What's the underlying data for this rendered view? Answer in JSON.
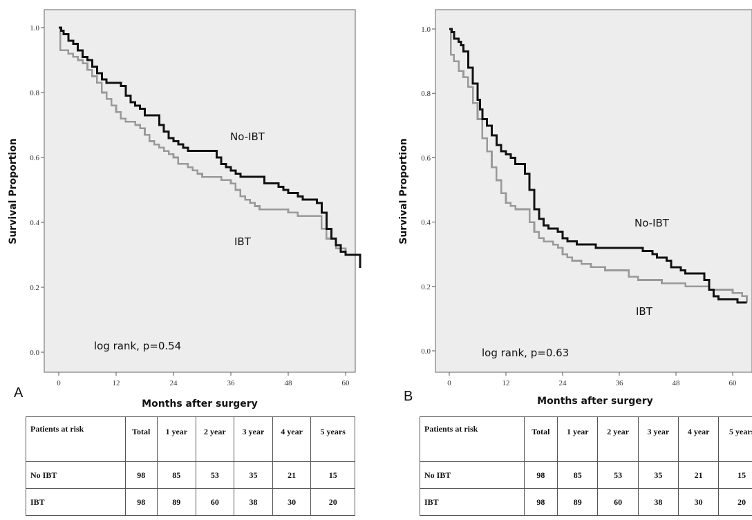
{
  "charts": [
    {
      "panel_label": "A",
      "annotation": "log rank, p=0.54",
      "table": {
        "header": [
          "Patients at risk",
          "Total",
          "1 year",
          "2 year",
          "3 year",
          "4 year",
          "5  years"
        ],
        "rows": [
          {
            "label": "No IBT",
            "values": [
              "98",
              "85",
              "53",
              "35",
              "21",
              "15"
            ]
          },
          {
            "label": "IBT",
            "values": [
              "98",
              "89",
              "60",
              "38",
              "30",
              "20"
            ]
          }
        ]
      }
    },
    {
      "panel_label": "B",
      "annotation": "log rank, p=0.63",
      "table": {
        "header": [
          "Patients at risk",
          "Total",
          "1 year",
          "2 year",
          "3 year",
          "4 year",
          "5  years"
        ],
        "rows": [
          {
            "label": "No IBT",
            "values": [
              "98",
              "85",
              "53",
              "35",
              "21",
              "15"
            ]
          },
          {
            "label": "IBT",
            "values": [
              "98",
              "89",
              "60",
              "38",
              "30",
              "20"
            ]
          }
        ]
      }
    }
  ],
  "chart_data": [
    {
      "type": "line",
      "xlabel": "Months after surgery",
      "ylabel": "Survival Proportion",
      "xlim": [
        0,
        63
      ],
      "ylim": [
        0,
        1
      ],
      "x_ticks": [
        "0",
        "12",
        "24",
        "36",
        "48",
        "60"
      ],
      "y_ticks": [
        "0.0",
        "0.2",
        "0.4",
        "0.6",
        "0.8",
        "1.0"
      ],
      "series": [
        {
          "name": "No-IBT",
          "color": "#111111",
          "points": [
            [
              0,
              1.0
            ],
            [
              0.5,
              0.99
            ],
            [
              1,
              0.98
            ],
            [
              2,
              0.96
            ],
            [
              3,
              0.95
            ],
            [
              4,
              0.93
            ],
            [
              5,
              0.91
            ],
            [
              6,
              0.9
            ],
            [
              7,
              0.88
            ],
            [
              8,
              0.86
            ],
            [
              9,
              0.84
            ],
            [
              10,
              0.83
            ],
            [
              12,
              0.83
            ],
            [
              13,
              0.82
            ],
            [
              14,
              0.79
            ],
            [
              15,
              0.77
            ],
            [
              16,
              0.76
            ],
            [
              17,
              0.75
            ],
            [
              18,
              0.73
            ],
            [
              20,
              0.73
            ],
            [
              21,
              0.7
            ],
            [
              22,
              0.68
            ],
            [
              23,
              0.66
            ],
            [
              24,
              0.65
            ],
            [
              25,
              0.64
            ],
            [
              26,
              0.63
            ],
            [
              27,
              0.62
            ],
            [
              32,
              0.62
            ],
            [
              33,
              0.6
            ],
            [
              34,
              0.58
            ],
            [
              35,
              0.57
            ],
            [
              36,
              0.56
            ],
            [
              37,
              0.55
            ],
            [
              38,
              0.54
            ],
            [
              42,
              0.54
            ],
            [
              43,
              0.52
            ],
            [
              45,
              0.52
            ],
            [
              46,
              0.51
            ],
            [
              47,
              0.5
            ],
            [
              48,
              0.49
            ],
            [
              50,
              0.48
            ],
            [
              51,
              0.47
            ],
            [
              53,
              0.47
            ],
            [
              54,
              0.46
            ],
            [
              55,
              0.43
            ],
            [
              56,
              0.38
            ],
            [
              57,
              0.35
            ],
            [
              58,
              0.33
            ],
            [
              59,
              0.31
            ],
            [
              60,
              0.3
            ],
            [
              62,
              0.3
            ],
            [
              63,
              0.26
            ]
          ]
        },
        {
          "name": "IBT",
          "color": "#999999",
          "points": [
            [
              0,
              1.0
            ],
            [
              0.3,
              0.93
            ],
            [
              2,
              0.92
            ],
            [
              3,
              0.91
            ],
            [
              4,
              0.9
            ],
            [
              5,
              0.89
            ],
            [
              6,
              0.87
            ],
            [
              7,
              0.85
            ],
            [
              8,
              0.83
            ],
            [
              9,
              0.8
            ],
            [
              10,
              0.78
            ],
            [
              11,
              0.76
            ],
            [
              12,
              0.74
            ],
            [
              13,
              0.72
            ],
            [
              14,
              0.71
            ],
            [
              15,
              0.71
            ],
            [
              16,
              0.7
            ],
            [
              17,
              0.69
            ],
            [
              18,
              0.67
            ],
            [
              19,
              0.65
            ],
            [
              20,
              0.64
            ],
            [
              21,
              0.63
            ],
            [
              22,
              0.62
            ],
            [
              23,
              0.61
            ],
            [
              24,
              0.6
            ],
            [
              25,
              0.58
            ],
            [
              26,
              0.58
            ],
            [
              27,
              0.57
            ],
            [
              28,
              0.56
            ],
            [
              29,
              0.55
            ],
            [
              30,
              0.54
            ],
            [
              33,
              0.54
            ],
            [
              34,
              0.53
            ],
            [
              36,
              0.52
            ],
            [
              37,
              0.5
            ],
            [
              38,
              0.48
            ],
            [
              39,
              0.47
            ],
            [
              40,
              0.46
            ],
            [
              41,
              0.45
            ],
            [
              42,
              0.44
            ],
            [
              47,
              0.44
            ],
            [
              48,
              0.43
            ],
            [
              49,
              0.43
            ],
            [
              50,
              0.42
            ],
            [
              54,
              0.42
            ],
            [
              55,
              0.38
            ],
            [
              56,
              0.35
            ],
            [
              58,
              0.32
            ],
            [
              60,
              0.3
            ],
            [
              62,
              0.3
            ],
            [
              63,
              0.26
            ]
          ]
        }
      ],
      "annotations": [
        "No-IBT",
        "IBT"
      ]
    },
    {
      "type": "line",
      "xlabel": "Months after surgery",
      "ylabel": "Survival Proportion",
      "xlim": [
        0,
        63
      ],
      "ylim": [
        0,
        1
      ],
      "x_ticks": [
        "0",
        "12",
        "24",
        "36",
        "48",
        "60"
      ],
      "y_ticks": [
        "0.0",
        "0.2",
        "0.4",
        "0.6",
        "0.8",
        "1.0"
      ],
      "series": [
        {
          "name": "No-IBT",
          "color": "#111111",
          "points": [
            [
              0,
              1.0
            ],
            [
              0.5,
              0.99
            ],
            [
              1,
              0.97
            ],
            [
              2,
              0.96
            ],
            [
              2.5,
              0.95
            ],
            [
              3,
              0.93
            ],
            [
              4,
              0.88
            ],
            [
              5,
              0.83
            ],
            [
              6,
              0.78
            ],
            [
              6.5,
              0.75
            ],
            [
              7,
              0.72
            ],
            [
              8,
              0.7
            ],
            [
              9,
              0.67
            ],
            [
              10,
              0.64
            ],
            [
              11,
              0.62
            ],
            [
              12,
              0.61
            ],
            [
              13,
              0.6
            ],
            [
              14,
              0.58
            ],
            [
              15,
              0.58
            ],
            [
              16,
              0.55
            ],
            [
              17,
              0.5
            ],
            [
              18,
              0.44
            ],
            [
              19,
              0.41
            ],
            [
              20,
              0.39
            ],
            [
              21,
              0.38
            ],
            [
              23,
              0.37
            ],
            [
              24,
              0.35
            ],
            [
              25,
              0.34
            ],
            [
              27,
              0.33
            ],
            [
              30,
              0.33
            ],
            [
              31,
              0.32
            ],
            [
              40,
              0.32
            ],
            [
              41,
              0.31
            ],
            [
              43,
              0.3
            ],
            [
              44,
              0.29
            ],
            [
              46,
              0.28
            ],
            [
              47,
              0.26
            ],
            [
              49,
              0.25
            ],
            [
              50,
              0.24
            ],
            [
              53,
              0.24
            ],
            [
              54,
              0.22
            ],
            [
              55,
              0.19
            ],
            [
              56,
              0.17
            ],
            [
              57,
              0.16
            ],
            [
              60,
              0.16
            ],
            [
              61,
              0.15
            ],
            [
              63,
              0.15
            ]
          ]
        },
        {
          "name": "IBT",
          "color": "#999999",
          "points": [
            [
              0,
              1.0
            ],
            [
              0.3,
              0.92
            ],
            [
              1,
              0.9
            ],
            [
              2,
              0.87
            ],
            [
              3,
              0.85
            ],
            [
              4,
              0.82
            ],
            [
              5,
              0.77
            ],
            [
              6,
              0.72
            ],
            [
              7,
              0.66
            ],
            [
              8,
              0.62
            ],
            [
              9,
              0.57
            ],
            [
              10,
              0.53
            ],
            [
              11,
              0.49
            ],
            [
              12,
              0.46
            ],
            [
              13,
              0.45
            ],
            [
              14,
              0.44
            ],
            [
              16,
              0.44
            ],
            [
              17,
              0.4
            ],
            [
              18,
              0.37
            ],
            [
              19,
              0.35
            ],
            [
              20,
              0.34
            ],
            [
              22,
              0.33
            ],
            [
              23,
              0.32
            ],
            [
              24,
              0.3
            ],
            [
              25,
              0.29
            ],
            [
              26,
              0.28
            ],
            [
              28,
              0.27
            ],
            [
              30,
              0.26
            ],
            [
              32,
              0.26
            ],
            [
              33,
              0.25
            ],
            [
              36,
              0.25
            ],
            [
              38,
              0.23
            ],
            [
              40,
              0.22
            ],
            [
              44,
              0.22
            ],
            [
              45,
              0.21
            ],
            [
              48,
              0.21
            ],
            [
              50,
              0.2
            ],
            [
              53,
              0.2
            ],
            [
              55,
              0.19
            ],
            [
              58,
              0.19
            ],
            [
              60,
              0.18
            ],
            [
              62,
              0.17
            ],
            [
              63,
              0.15
            ]
          ]
        }
      ],
      "annotations": [
        "No-IBT",
        "IBT"
      ]
    }
  ]
}
